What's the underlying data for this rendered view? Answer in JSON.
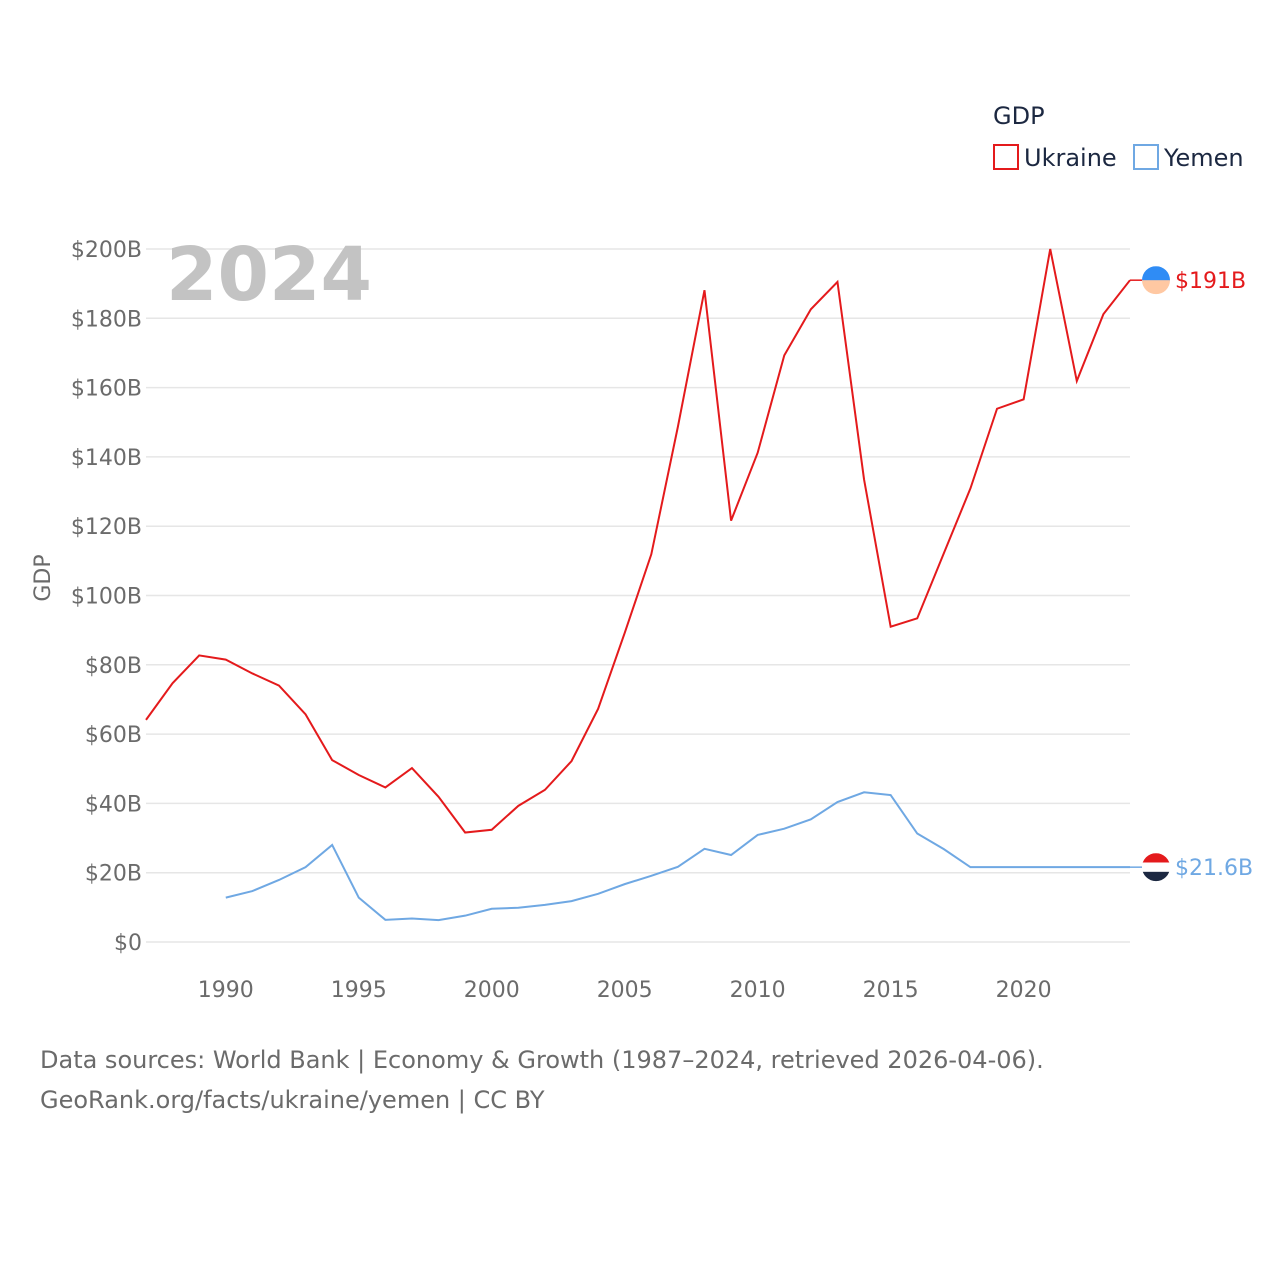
{
  "chart_data": {
    "type": "line",
    "title": "GDP",
    "legend_title": "GDP",
    "legend_placement": "top-right",
    "year_label": "2024",
    "ylabel": "GDP",
    "xlabel": "",
    "ylim": [
      0,
      200
    ],
    "xlim": [
      1987,
      2024
    ],
    "y_ticks": [
      0,
      20,
      40,
      60,
      80,
      100,
      120,
      140,
      160,
      180,
      200
    ],
    "y_tick_labels": [
      "$0",
      "$20B",
      "$40B",
      "$60B",
      "$80B",
      "$100B",
      "$120B",
      "$140B",
      "$160B",
      "$180B",
      "$200B"
    ],
    "x_ticks": [
      1990,
      1995,
      2000,
      2005,
      2010,
      2015,
      2020
    ],
    "x_tick_labels": [
      "1990",
      "1995",
      "2000",
      "2005",
      "2010",
      "2015",
      "2020"
    ],
    "grid": true,
    "series": [
      {
        "name": "Ukraine",
        "color": "#e41a1c",
        "end_label": "$191B",
        "end_value": 191,
        "flag_colors": [
          "#2f8cf5",
          "#ffc8a2"
        ],
        "x": [
          1987,
          1988,
          1989,
          1990,
          1991,
          1992,
          1993,
          1994,
          1995,
          1996,
          1997,
          1998,
          1999,
          2000,
          2001,
          2002,
          2003,
          2004,
          2005,
          2006,
          2007,
          2008,
          2009,
          2010,
          2011,
          2012,
          2013,
          2014,
          2015,
          2016,
          2017,
          2018,
          2019,
          2020,
          2021,
          2022,
          2023,
          2024
        ],
        "values": [
          64.1,
          74.7,
          82.7,
          81.5,
          77.5,
          74,
          65.7,
          52.5,
          48.2,
          44.6,
          50.2,
          41.9,
          31.6,
          32.4,
          39.3,
          43.9,
          52.2,
          67.3,
          89.2,
          111.9,
          148.7,
          188.1,
          121.6,
          141.2,
          169.3,
          182.6,
          190.5,
          133.5,
          91,
          93.4,
          112.2,
          130.9,
          153.9,
          156.6,
          200,
          161.9,
          181.2,
          191
        ]
      },
      {
        "name": "Yemen",
        "color": "#6fa8e3",
        "end_label": "$21.6B",
        "end_value": 21.6,
        "flag_colors": [
          "#e41a1c",
          "#ffffff",
          "#1c2841"
        ],
        "x": [
          1990,
          1991,
          1992,
          1993,
          1994,
          1995,
          1996,
          1997,
          1998,
          1999,
          2000,
          2001,
          2002,
          2003,
          2004,
          2005,
          2006,
          2007,
          2008,
          2009,
          2010,
          2011,
          2012,
          2013,
          2014,
          2015,
          2016,
          2017,
          2018,
          2019,
          2020,
          2021,
          2022,
          2023,
          2024
        ],
        "values": [
          12.8,
          14.7,
          17.9,
          21.6,
          28,
          12.8,
          6.4,
          6.8,
          6.3,
          7.6,
          9.6,
          9.9,
          10.7,
          11.8,
          13.9,
          16.7,
          19.1,
          21.7,
          26.9,
          25.1,
          30.9,
          32.7,
          35.4,
          40.4,
          43.2,
          42.4,
          31.3,
          26.8,
          21.6,
          21.6,
          21.6,
          21.6,
          21.6,
          21.6,
          21.6
        ]
      }
    ]
  },
  "footer": {
    "line1": "Data sources: World Bank | Economy & Growth (1987–2024, retrieved 2026-04-06).",
    "line2": "GeoRank.org/facts/ukraine/yemen | CC BY"
  }
}
